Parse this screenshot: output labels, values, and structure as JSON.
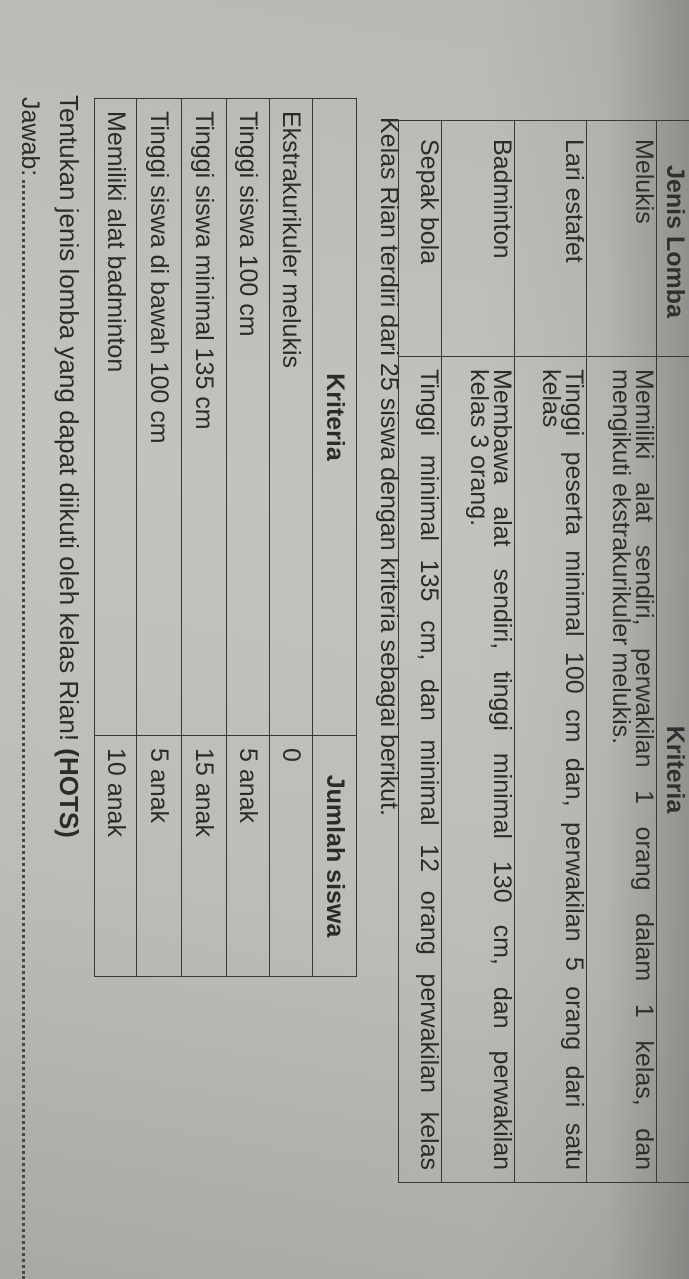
{
  "competition_table": {
    "headers": [
      "Jenis Lomba",
      "Kriteria"
    ],
    "rows": [
      {
        "name": "Melukis",
        "lines": [
          "Memiliki alat sendiri, perwakilan 1 orang dalam 1 kelas, dan",
          "mengikuti ekstrakurikuler melukis."
        ]
      },
      {
        "name": "Lari estafet",
        "lines": [
          "Tinggi peserta minimal 100 cm dan, perwakilan 5 orang dari satu",
          "kelas"
        ]
      },
      {
        "name": "Badminton",
        "lines": [
          "Membawa alat sendiri, tinggi minimal 130 cm, dan perwakilan",
          "kelas 3 orang."
        ]
      },
      {
        "name": "Sepak bola",
        "lines": [
          "Tinggi minimal 135 cm, dan minimal 12 orang perwakilan kelas"
        ]
      }
    ]
  },
  "intro_sentence": "Kelas Rian terdiri dari 25 siswa dengan kriteria sebagai berikut.",
  "class_table": {
    "headers": [
      "Kriteria",
      "Jumlah siswa"
    ],
    "rows": [
      [
        "Ekstrakurikuler melukis",
        "0"
      ],
      [
        "Tinggi siswa 100 cm",
        "5 anak"
      ],
      [
        "Tinggi siswa minimal 135 cm",
        "15 anak"
      ],
      [
        "Tinggi siswa di bawah 100 cm",
        "5 anak"
      ],
      [
        "Memiliki alat badminton",
        "10 anak"
      ]
    ]
  },
  "question": {
    "text": "Tentukan jenis lomba yang dapat diikuti oleh kelas Rian! ",
    "tag": "(HOTS)"
  },
  "answer_label": "Jawab:",
  "colors": {
    "paper": "#bdbcb7",
    "ink": "#2b2b2b",
    "lines": "#3a3835"
  }
}
